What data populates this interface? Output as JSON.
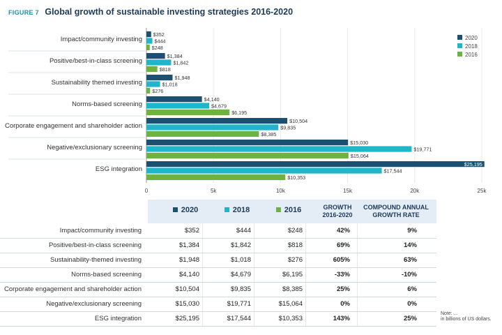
{
  "header": {
    "figure_label": "FIGURE 7",
    "title": "Global growth of sustainable investing strategies 2016-2020"
  },
  "colors": {
    "2020": "#1b5070",
    "2018": "#1eb6c8",
    "2016": "#6db33f"
  },
  "chart_data": {
    "type": "bar",
    "orientation": "horizontal",
    "title": "Global growth of sustainable investing strategies 2016-2020",
    "categories": [
      "Impact/community investing",
      "Positive/best-in-class screening",
      "Sustainability themed investing",
      "Norms-based screening",
      "Corporate engagement and shareholder action",
      "Negative/exclusionary screening",
      "ESG integration"
    ],
    "series": [
      {
        "name": "2020",
        "values": [
          352,
          1384,
          1948,
          4140,
          10504,
          15030,
          25195
        ],
        "labels": [
          "$352",
          "$1,384",
          "$1,948",
          "$4,140",
          "$10,504",
          "$15,030",
          "$25,195"
        ]
      },
      {
        "name": "2018",
        "values": [
          444,
          1842,
          1018,
          4679,
          9835,
          19771,
          17544
        ],
        "labels": [
          "$444",
          "$1,842",
          "$1,018",
          "$4,679",
          "$9,835",
          "$19,771",
          "$17,544"
        ]
      },
      {
        "name": "2016",
        "values": [
          248,
          818,
          276,
          6195,
          8385,
          15064,
          10353
        ],
        "labels": [
          "$248",
          "$818",
          "$276",
          "$6,195",
          "$8,385",
          "$15,064",
          "$10,353"
        ]
      }
    ],
    "xlim": [
      0,
      25000
    ],
    "xticks": [
      0,
      5000,
      10000,
      15000,
      20000,
      25000
    ],
    "xtick_labels": [
      "0",
      "5k",
      "10k",
      "15k",
      "20k",
      "25k"
    ],
    "legend": [
      "2020",
      "2018",
      "2016"
    ],
    "legend_position": "top-right",
    "grid": true
  },
  "table": {
    "headers": {
      "y2020": "2020",
      "y2018": "2018",
      "y2016": "2016",
      "growth_l1": "GROWTH",
      "growth_l2": "2016-2020",
      "cagr_l1": "COMPOUND ANNUAL",
      "cagr_l2": "GROWTH RATE"
    },
    "rows": [
      {
        "category": "Impact/community investing",
        "v2020": "$352",
        "v2018": "$444",
        "v2016": "$248",
        "growth": "42%",
        "cagr": "9%"
      },
      {
        "category": "Positive/best-in-class screening",
        "v2020": "$1,384",
        "v2018": "$1,842",
        "v2016": "$818",
        "growth": "69%",
        "cagr": "14%"
      },
      {
        "category": "Sustainability-themed investing",
        "v2020": "$1,948",
        "v2018": "$1,018",
        "v2016": "$276",
        "growth": "605%",
        "cagr": "63%"
      },
      {
        "category": "Norms-based screening",
        "v2020": "$4,140",
        "v2018": "$4,679",
        "v2016": "$6,195",
        "growth": "-33%",
        "cagr": "-10%"
      },
      {
        "category": "Corporate engagement and shareholder action",
        "v2020": "$10,504",
        "v2018": "$9,835",
        "v2016": "$8,385",
        "growth": "25%",
        "cagr": "6%"
      },
      {
        "category": "Negative/exclusionary screening",
        "v2020": "$15,030",
        "v2018": "$19,771",
        "v2016": "$15,064",
        "growth": "0%",
        "cagr": "0%"
      },
      {
        "category": "ESG integration",
        "v2020": "$25,195",
        "v2018": "$17,544",
        "v2016": "$10,353",
        "growth": "143%",
        "cagr": "25%"
      }
    ]
  },
  "note": {
    "line1": "Note: ...",
    "line2": "in billions of US dollars."
  }
}
